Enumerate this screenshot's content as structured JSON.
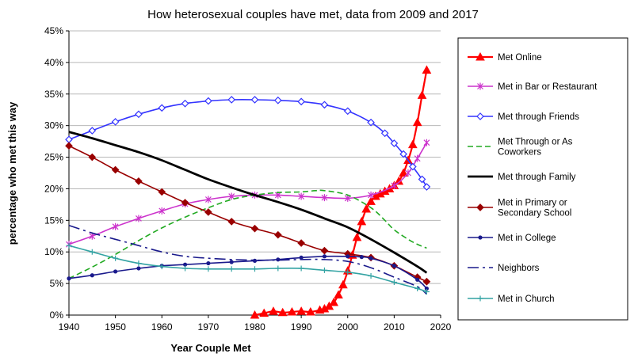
{
  "chart_data": {
    "type": "line",
    "title": "How heterosexual couples have met, data from 2009 and 2017",
    "xlabel": "Year Couple Met",
    "ylabel": "percentage who met this way",
    "xlim": [
      1940,
      2020
    ],
    "ylim": [
      0,
      45
    ],
    "x_ticks": [
      "1940",
      "1950",
      "1960",
      "1970",
      "1980",
      "1990",
      "2000",
      "2010",
      "2020"
    ],
    "y_ticks": [
      "0%",
      "5%",
      "10%",
      "15%",
      "20%",
      "25%",
      "30%",
      "35%",
      "40%",
      "45%"
    ],
    "grid": "horizontal",
    "legend_position": "right",
    "series": [
      {
        "name": "Met Online",
        "color": "#ff0000",
        "marker": "triangle",
        "dash": "solid",
        "x": [
          1980,
          1982,
          1984,
          1986,
          1988,
          1990,
          1992,
          1994,
          1995,
          1996,
          1997,
          1998,
          1999,
          2000,
          2001,
          2002,
          2003,
          2004,
          2005,
          2006,
          2007,
          2008,
          2009,
          2010,
          2011,
          2012,
          2013,
          2014,
          2015,
          2016,
          2017
        ],
        "y": [
          0.0,
          0.3,
          0.6,
          0.4,
          0.5,
          0.6,
          0.5,
          0.8,
          1.0,
          1.4,
          2.0,
          3.2,
          4.8,
          7.0,
          9.5,
          12.3,
          14.8,
          16.8,
          18.0,
          18.8,
          19.2,
          19.6,
          20.0,
          20.5,
          21.2,
          22.5,
          24.5,
          27.0,
          30.5,
          34.8,
          38.8
        ]
      },
      {
        "name": "Met in Bar or Restaurant",
        "color": "#cc33cc",
        "marker": "asterisk",
        "dash": "solid",
        "x": [
          1940,
          1945,
          1950,
          1955,
          1960,
          1965,
          1970,
          1975,
          1980,
          1985,
          1990,
          1995,
          2000,
          2005,
          2010,
          2013,
          2015,
          2017
        ],
        "y": [
          11.2,
          12.5,
          14.0,
          15.3,
          16.5,
          17.6,
          18.3,
          18.8,
          19.0,
          19.0,
          18.8,
          18.6,
          18.5,
          19.0,
          20.5,
          22.5,
          24.8,
          27.3
        ]
      },
      {
        "name": "Met through Friends",
        "color": "#3333ff",
        "marker": "diamond-open",
        "dash": "solid",
        "x": [
          1940,
          1945,
          1950,
          1955,
          1960,
          1965,
          1970,
          1975,
          1980,
          1985,
          1990,
          1995,
          2000,
          2005,
          2008,
          2010,
          2012,
          2014,
          2016,
          2017
        ],
        "y": [
          27.8,
          29.2,
          30.6,
          31.8,
          32.8,
          33.5,
          33.9,
          34.1,
          34.1,
          34.0,
          33.8,
          33.3,
          32.3,
          30.5,
          28.8,
          27.2,
          25.5,
          23.5,
          21.5,
          20.3
        ]
      },
      {
        "name": "Met Through or As Coworkers",
        "color": "#22aa22",
        "marker": "none",
        "dash": "dashed",
        "x": [
          1940,
          1945,
          1950,
          1955,
          1960,
          1965,
          1970,
          1975,
          1980,
          1985,
          1990,
          1993,
          1995,
          2000,
          2005,
          2008,
          2010,
          2013,
          2015,
          2017
        ],
        "y": [
          5.8,
          7.6,
          9.6,
          11.8,
          13.8,
          15.5,
          17.0,
          18.3,
          19.0,
          19.4,
          19.5,
          19.7,
          19.7,
          19.0,
          17.0,
          15.0,
          13.5,
          12.0,
          11.2,
          10.6
        ]
      },
      {
        "name": "Met through Family",
        "color": "#000000",
        "marker": "none",
        "dash": "solid",
        "x": [
          1940,
          1945,
          1950,
          1955,
          1960,
          1965,
          1970,
          1975,
          1980,
          1985,
          1990,
          1995,
          2000,
          2005,
          2010,
          2015,
          2017
        ],
        "y": [
          29.0,
          28.0,
          26.9,
          25.8,
          24.5,
          23.0,
          21.5,
          20.2,
          19.0,
          17.9,
          16.7,
          15.3,
          13.9,
          12.0,
          9.9,
          7.7,
          6.7
        ]
      },
      {
        "name": "Met in Primary or Secondary School",
        "color": "#990000",
        "marker": "diamond",
        "dash": "solid",
        "x": [
          1940,
          1945,
          1950,
          1955,
          1960,
          1965,
          1970,
          1975,
          1980,
          1985,
          1990,
          1995,
          2000,
          2005,
          2010,
          2015,
          2017
        ],
        "y": [
          26.8,
          25.0,
          23.0,
          21.2,
          19.5,
          17.8,
          16.3,
          14.8,
          13.7,
          12.7,
          11.4,
          10.2,
          9.7,
          9.1,
          7.8,
          6.0,
          5.3
        ]
      },
      {
        "name": "Met in College",
        "color": "#1a1a8c",
        "marker": "dot",
        "dash": "solid",
        "x": [
          1940,
          1945,
          1950,
          1955,
          1960,
          1965,
          1970,
          1975,
          1980,
          1985,
          1990,
          1995,
          2000,
          2003,
          2005,
          2010,
          2015,
          2017
        ],
        "y": [
          5.8,
          6.3,
          6.9,
          7.4,
          7.8,
          8.0,
          8.2,
          8.4,
          8.6,
          8.8,
          9.1,
          9.3,
          9.3,
          9.2,
          9.0,
          7.8,
          5.6,
          4.2
        ]
      },
      {
        "name": "Neighbors",
        "color": "#1a1a8c",
        "marker": "none",
        "dash": "dashdot",
        "x": [
          1940,
          1945,
          1950,
          1955,
          1960,
          1965,
          1970,
          1975,
          1980,
          1985,
          1990,
          1995,
          2000,
          2005,
          2010,
          2015,
          2017
        ],
        "y": [
          14.2,
          13.0,
          12.0,
          11.0,
          10.0,
          9.3,
          9.0,
          8.8,
          8.7,
          8.7,
          8.8,
          8.8,
          8.5,
          7.5,
          6.0,
          4.5,
          3.3
        ]
      },
      {
        "name": "Met in Church",
        "color": "#33a3a3",
        "marker": "plus",
        "dash": "solid",
        "x": [
          1940,
          1945,
          1950,
          1955,
          1960,
          1965,
          1970,
          1975,
          1980,
          1985,
          1990,
          1995,
          2000,
          2005,
          2010,
          2015,
          2017
        ],
        "y": [
          11.0,
          10.0,
          9.0,
          8.2,
          7.7,
          7.4,
          7.3,
          7.3,
          7.3,
          7.4,
          7.4,
          7.1,
          6.8,
          6.2,
          5.2,
          4.2,
          3.7
        ]
      }
    ]
  }
}
